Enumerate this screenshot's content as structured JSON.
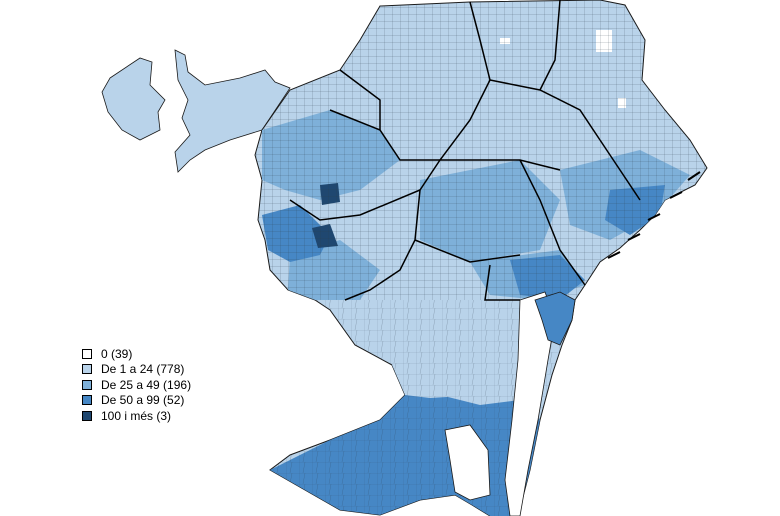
{
  "legend": {
    "items": [
      {
        "label": "0 (39)",
        "color": "#ffffff"
      },
      {
        "label": "De 1 a 24 (778)",
        "color": "#b9d3ea"
      },
      {
        "label": "De 25 a 49 (196)",
        "color": "#7eb0d9"
      },
      {
        "label": "De 50 a 99 (52)",
        "color": "#4687c5"
      },
      {
        "label": "100 i més (3)",
        "color": "#1f4770"
      }
    ]
  },
  "colors": {
    "background": "#ffffff",
    "tract_outline": "#2b3a4a",
    "district_border": "#000000"
  }
}
